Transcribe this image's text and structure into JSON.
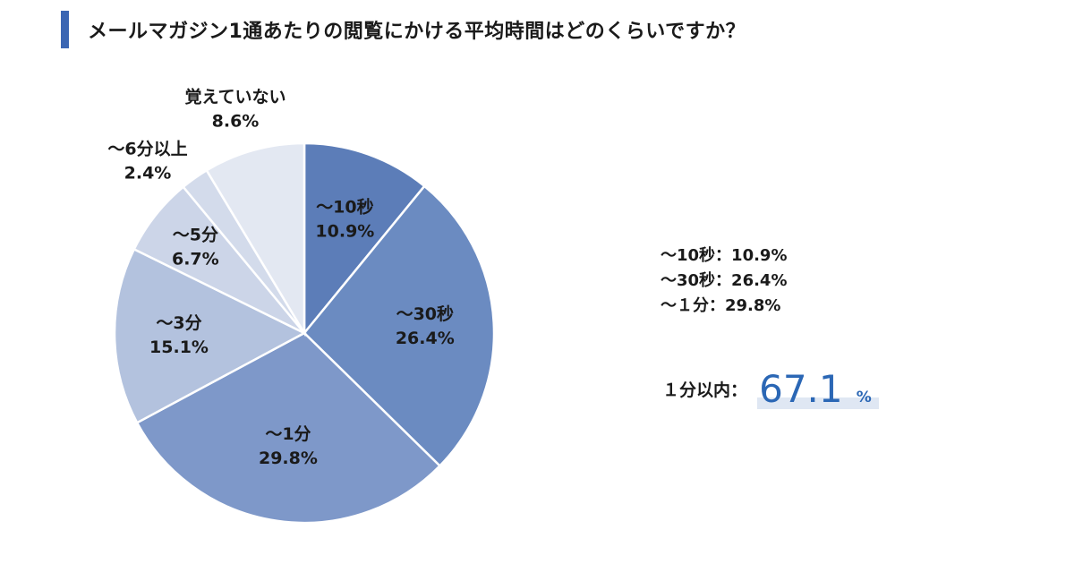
{
  "title": "メールマガジン1通あたりの閲覧にかける平均時間はどのくらいですか？",
  "colors": {
    "accent": "#3b66b3",
    "slices": [
      "#5c7db8",
      "#6b8bc1",
      "#7e98c9",
      "#b3c2de",
      "#ccd5e8",
      "#d3dbeb",
      "#e3e8f2"
    ],
    "highlight": "#dfe7f3",
    "total_value": "#2b67b5"
  },
  "chart_data": {
    "type": "pie",
    "title": "メールマガジン1通あたりの閲覧にかける平均時間はどのくらいですか？",
    "slices": [
      {
        "label": "〜10秒",
        "value": 10.9,
        "value_text": "10.9%"
      },
      {
        "label": "〜30秒",
        "value": 26.4,
        "value_text": "26.4%"
      },
      {
        "label": "〜1分",
        "value": 29.8,
        "value_text": "29.8%"
      },
      {
        "label": "〜3分",
        "value": 15.1,
        "value_text": "15.1%"
      },
      {
        "label": "〜5分",
        "value": 6.7,
        "value_text": "6.7%"
      },
      {
        "label": "〜6分以上",
        "value": 2.4,
        "value_text": "2.4%"
      },
      {
        "label": "覚えていない",
        "value": 8.6,
        "value_text": "8.6%"
      }
    ],
    "start": "12 o'clock",
    "direction": "clockwise",
    "legend": "none"
  },
  "summary": {
    "lines": [
      "〜10秒：10.9%",
      "〜30秒：26.4%",
      "〜１分：29.8%"
    ],
    "total_label": "１分以内：",
    "total_value": "67.1",
    "total_unit": "%"
  }
}
